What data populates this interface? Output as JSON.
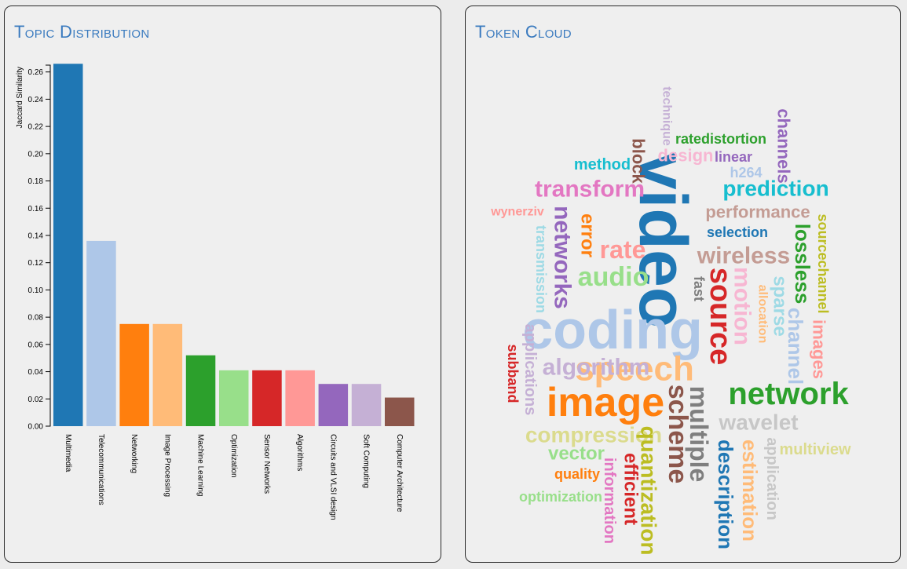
{
  "left_panel": {
    "title": "Topic Distribution"
  },
  "right_panel": {
    "title": "Token Cloud"
  },
  "chart_data": [
    {
      "type": "bar",
      "ylabel": "Jaccard Similarity",
      "xlabel": "",
      "ylim": [
        0,
        0.265
      ],
      "yticks": [
        "0.00",
        "0.02",
        "0.04",
        "0.06",
        "0.08",
        "0.10",
        "0.12",
        "0.14",
        "0.16",
        "0.18",
        "0.20",
        "0.22",
        "0.24",
        "0.26"
      ],
      "categories": [
        "Multimedia",
        "Telecommunications",
        "Networking",
        "Image Processing",
        "Machine Learning",
        "Optimization",
        "Sensor Networks",
        "Algorithms",
        "Circuits and VLSI design",
        "Soft Computing",
        "Computer Architecture"
      ],
      "values": [
        0.266,
        0.136,
        0.075,
        0.075,
        0.052,
        0.041,
        0.041,
        0.041,
        0.031,
        0.031,
        0.021
      ],
      "colors": [
        "#1f77b4",
        "#aec7e8",
        "#ff7f0e",
        "#ffbb78",
        "#2ca02c",
        "#98df8a",
        "#d62728",
        "#ff9896",
        "#9467bd",
        "#c5b0d5",
        "#8c564b"
      ],
      "grid": false,
      "legend": "none"
    },
    {
      "type": "word_cloud",
      "words": [
        {
          "text": "video",
          "size": 86,
          "rotate": 90,
          "color": "#1f77b4"
        },
        {
          "text": "coding",
          "size": 70,
          "rotate": 0,
          "color": "#aec7e8"
        },
        {
          "text": "image",
          "size": 52,
          "rotate": 0,
          "color": "#ff7f0e"
        },
        {
          "text": "speech",
          "size": 44,
          "rotate": 0,
          "color": "#ffbb78"
        },
        {
          "text": "network",
          "size": 40,
          "rotate": 0,
          "color": "#2ca02c"
        },
        {
          "text": "source",
          "size": 38,
          "rotate": 90,
          "color": "#d62728"
        },
        {
          "text": "scheme",
          "size": 34,
          "rotate": 90,
          "color": "#8c564b"
        },
        {
          "text": "multiple",
          "size": 32,
          "rotate": 90,
          "color": "#7f7f7f"
        },
        {
          "text": "motion",
          "size": 30,
          "rotate": 90,
          "color": "#f7b6d2"
        },
        {
          "text": "audio",
          "size": 34,
          "rotate": 0,
          "color": "#98df8a"
        },
        {
          "text": "wireless",
          "size": 30,
          "rotate": 0,
          "color": "#c49c94"
        },
        {
          "text": "rate",
          "size": 32,
          "rotate": 0,
          "color": "#ff9896"
        },
        {
          "text": "networks",
          "size": 30,
          "rotate": 90,
          "color": "#9467bd"
        },
        {
          "text": "transform",
          "size": 30,
          "rotate": 0,
          "color": "#e377c2"
        },
        {
          "text": "prediction",
          "size": 28,
          "rotate": 0,
          "color": "#17becf"
        },
        {
          "text": "algorithm",
          "size": 30,
          "rotate": 0,
          "color": "#c5b0d5"
        },
        {
          "text": "compression",
          "size": 28,
          "rotate": 0,
          "color": "#dbdb8d"
        },
        {
          "text": "wavelet",
          "size": 28,
          "rotate": 0,
          "color": "#c7c7c7"
        },
        {
          "text": "quantization",
          "size": 28,
          "rotate": 90,
          "color": "#bcbd22"
        },
        {
          "text": "description",
          "size": 26,
          "rotate": 90,
          "color": "#1f77b4"
        },
        {
          "text": "estimation",
          "size": 26,
          "rotate": 90,
          "color": "#ffbb78"
        },
        {
          "text": "channel",
          "size": 26,
          "rotate": 90,
          "color": "#aec7e8"
        },
        {
          "text": "lossless",
          "size": 26,
          "rotate": 90,
          "color": "#2ca02c"
        },
        {
          "text": "sparse",
          "size": 24,
          "rotate": 90,
          "color": "#9edae5"
        },
        {
          "text": "efficient",
          "size": 24,
          "rotate": 90,
          "color": "#d62728"
        },
        {
          "text": "vector",
          "size": 24,
          "rotate": 0,
          "color": "#98df8a"
        },
        {
          "text": "error",
          "size": 24,
          "rotate": 90,
          "color": "#ff7f0e"
        },
        {
          "text": "images",
          "size": 22,
          "rotate": 90,
          "color": "#ff9896"
        },
        {
          "text": "performance",
          "size": 22,
          "rotate": 0,
          "color": "#c49c94"
        },
        {
          "text": "channels",
          "size": 22,
          "rotate": 90,
          "color": "#9467bd"
        },
        {
          "text": "block",
          "size": 22,
          "rotate": 90,
          "color": "#8c564b"
        },
        {
          "text": "information",
          "size": 20,
          "rotate": 90,
          "color": "#e377c2"
        },
        {
          "text": "applications",
          "size": 20,
          "rotate": 90,
          "color": "#c5b0d5"
        },
        {
          "text": "application",
          "size": 20,
          "rotate": 90,
          "color": "#c7c7c7"
        },
        {
          "text": "design",
          "size": 22,
          "rotate": 0,
          "color": "#f7b6d2"
        },
        {
          "text": "method",
          "size": 20,
          "rotate": 0,
          "color": "#17becf"
        },
        {
          "text": "multiview",
          "size": 20,
          "rotate": 0,
          "color": "#dbdb8d"
        },
        {
          "text": "sourcechannel",
          "size": 18,
          "rotate": 90,
          "color": "#bcbd22"
        },
        {
          "text": "selection",
          "size": 18,
          "rotate": 0,
          "color": "#1f77b4"
        },
        {
          "text": "fast",
          "size": 18,
          "rotate": 90,
          "color": "#7f7f7f"
        },
        {
          "text": "linear",
          "size": 18,
          "rotate": 0,
          "color": "#9467bd"
        },
        {
          "text": "h264",
          "size": 18,
          "rotate": 0,
          "color": "#aec7e8"
        },
        {
          "text": "ratedistortion",
          "size": 18,
          "rotate": 0,
          "color": "#2ca02c"
        },
        {
          "text": "transmission",
          "size": 18,
          "rotate": 90,
          "color": "#9edae5"
        },
        {
          "text": "quality",
          "size": 18,
          "rotate": 0,
          "color": "#ff7f0e"
        },
        {
          "text": "allocation",
          "size": 16,
          "rotate": 90,
          "color": "#ffbb78"
        },
        {
          "text": "optimization",
          "size": 18,
          "rotate": 0,
          "color": "#98df8a"
        },
        {
          "text": "subband",
          "size": 18,
          "rotate": 90,
          "color": "#d62728"
        },
        {
          "text": "technique",
          "size": 16,
          "rotate": 90,
          "color": "#c5b0d5"
        },
        {
          "text": "wynerziv",
          "size": 16,
          "rotate": 0,
          "color": "#ff9896"
        }
      ]
    }
  ]
}
